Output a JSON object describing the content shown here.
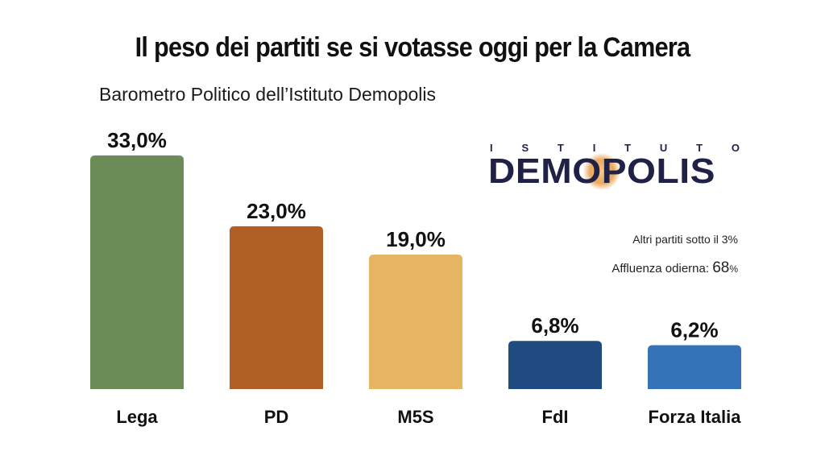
{
  "title": "Il peso dei partiti se si votasse oggi per la Camera",
  "subtitle": "Barometro Politico dell’Istituto Demopolis",
  "logo": {
    "top": "ISTITUTO",
    "main": "DEMOPOLIS"
  },
  "notes": {
    "others": "Altri partiti sotto il 3%",
    "turnout_label": "Affluenza odierna:",
    "turnout_value": "68",
    "turnout_unit": "%"
  },
  "chart_data": {
    "type": "bar",
    "categories": [
      "Lega",
      "PD",
      "M5S",
      "FdI",
      "Forza Italia"
    ],
    "values": [
      33.0,
      23.0,
      19.0,
      6.8,
      6.2
    ],
    "value_labels": [
      "33,0%",
      "23,0%",
      "19,0%",
      "6,8%",
      "6,2%"
    ],
    "colors": [
      "#6c8c57",
      "#b05f25",
      "#e6b562",
      "#1f4b80",
      "#3573b8"
    ],
    "ylim": [
      0,
      33.0
    ],
    "grid": false,
    "legend": "none"
  }
}
